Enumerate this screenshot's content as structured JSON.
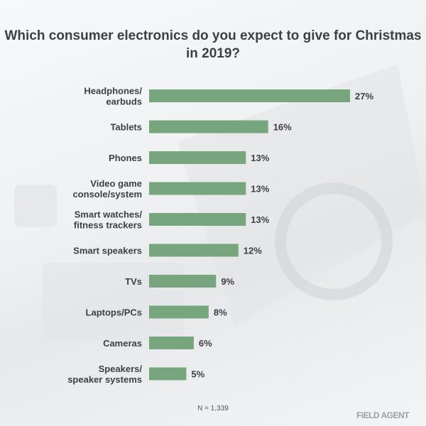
{
  "chart_data": {
    "type": "bar",
    "orientation": "horizontal",
    "title": "Which consumer electronics do you expect to give for Christmas in 2019?",
    "categories": [
      "Headphones/\nearbuds",
      "Tablets",
      "Phones",
      "Video game\nconsole/system",
      "Smart watches/\nfitness trackers",
      "Smart speakers",
      "TVs",
      "Laptops/PCs",
      "Cameras",
      "Speakers/\nspeaker systems"
    ],
    "values": [
      27,
      16,
      13,
      13,
      13,
      12,
      9,
      8,
      6,
      5
    ],
    "data_labels": [
      "27%",
      "16%",
      "13%",
      "13%",
      "13%",
      "12%",
      "9%",
      "8%",
      "6%",
      "5%"
    ],
    "unit": "%",
    "bar_color": "#76a57e",
    "grid": false,
    "xlim": [
      0,
      27
    ]
  },
  "note": "N = 1,339",
  "logo": "FiELD AGENT"
}
